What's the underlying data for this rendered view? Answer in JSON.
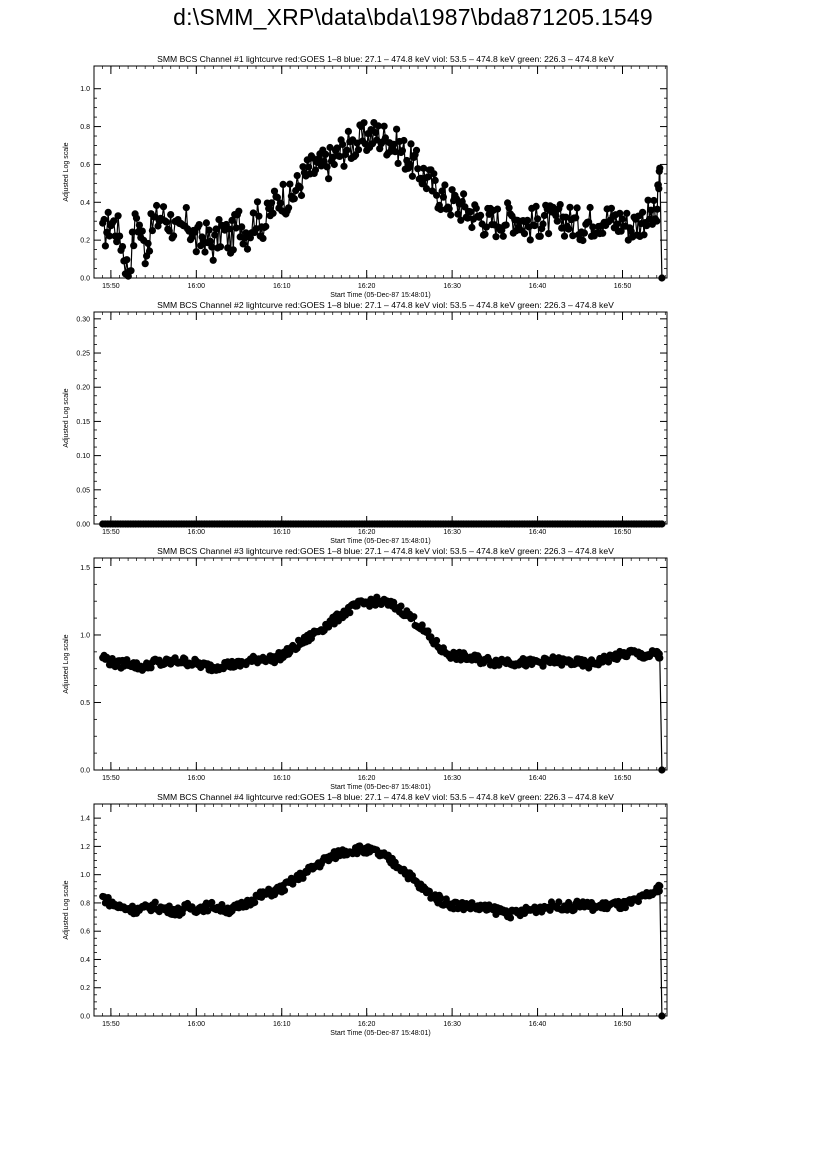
{
  "page": {
    "title": "d:\\SMM_XRP\\data\\bda\\1987\\bda871205.1549"
  },
  "chart_data": [
    {
      "type": "scatter",
      "title": "SMM BCS Channel #1 lightcurve  red:GOES 1–8  blue: 27.1 – 474.8 keV  viol: 53.5 – 474.8 keV  green: 226.3 – 474.8 keV",
      "xlabel": "Start Time (05-Dec-87 15:48:01)",
      "ylabel": "Adjusted Log scale",
      "xlim": [
        15.8,
        16.92
      ],
      "ylim": [
        0,
        1.12
      ],
      "xtick_values": [
        15.833,
        16.0,
        16.167,
        16.333,
        16.5,
        16.667,
        16.833
      ],
      "xtick_labels": [
        "15:50",
        "16:00",
        "16:10",
        "16:20",
        "16:30",
        "16:40",
        "16:50"
      ],
      "ytick_values": [
        0,
        0.2,
        0.4,
        0.6,
        0.8,
        1.0
      ],
      "ytick_labels": [
        "0.0",
        "0.2",
        "0.4",
        "0.6",
        "0.8",
        "1.0"
      ],
      "series": [
        {
          "x": [
            15.817,
            15.833,
            15.85,
            15.867,
            15.883,
            15.9,
            15.917,
            15.933,
            15.95,
            15.967,
            15.983,
            16.0,
            16.017,
            16.033,
            16.05,
            16.067,
            16.083,
            16.1,
            16.117,
            16.133,
            16.15,
            16.167,
            16.183,
            16.2,
            16.217,
            16.233,
            16.25,
            16.267,
            16.283,
            16.3,
            16.317,
            16.333,
            16.35,
            16.367,
            16.383,
            16.4,
            16.417,
            16.433,
            16.45,
            16.467,
            16.483,
            16.5,
            16.517,
            16.533,
            16.55,
            16.567,
            16.583,
            16.6,
            16.617,
            16.633,
            16.65,
            16.667,
            16.683,
            16.7,
            16.717,
            16.733,
            16.75,
            16.767,
            16.783,
            16.8,
            16.817,
            16.833,
            16.85,
            16.867,
            16.883,
            16.9,
            16.906,
            16.91
          ],
          "y": [
            0.22,
            0.3,
            0.24,
            0.02,
            0.33,
            0.15,
            0.3,
            0.33,
            0.3,
            0.22,
            0.3,
            0.19,
            0.22,
            0.17,
            0.25,
            0.2,
            0.3,
            0.24,
            0.33,
            0.28,
            0.38,
            0.44,
            0.41,
            0.49,
            0.56,
            0.58,
            0.6,
            0.62,
            0.67,
            0.7,
            0.72,
            0.74,
            0.76,
            0.74,
            0.72,
            0.68,
            0.63,
            0.58,
            0.53,
            0.47,
            0.42,
            0.4,
            0.38,
            0.35,
            0.33,
            0.3,
            0.3,
            0.31,
            0.33,
            0.31,
            0.28,
            0.3,
            0.31,
            0.29,
            0.31,
            0.3,
            0.28,
            0.3,
            0.31,
            0.32,
            0.3,
            0.3,
            0.27,
            0.3,
            0.33,
            0.32,
            0.58,
            0.0
          ]
        }
      ]
    },
    {
      "type": "scatter",
      "title": "SMM BCS Channel #2 lightcurve  red:GOES 1–8  blue: 27.1 – 474.8 keV  viol: 53.5 – 474.8 keV  green: 226.3 – 474.8 keV",
      "xlabel": "Start Time (05-Dec-87 15:48:01)",
      "ylabel": "Adjusted Log scale",
      "xlim": [
        15.8,
        16.92
      ],
      "ylim": [
        0,
        0.31
      ],
      "xtick_values": [
        15.833,
        16.0,
        16.167,
        16.333,
        16.5,
        16.667,
        16.833
      ],
      "xtick_labels": [
        "15:50",
        "16:00",
        "16:10",
        "16:20",
        "16:30",
        "16:40",
        "16:50"
      ],
      "ytick_values": [
        0,
        0.05,
        0.1,
        0.15,
        0.2,
        0.25,
        0.3
      ],
      "ytick_labels": [
        "0.00",
        "0.05",
        "0.10",
        "0.15",
        "0.20",
        "0.25",
        "0.30"
      ],
      "series": [
        {
          "x": [
            15.817,
            16.91
          ],
          "y": [
            0.0,
            0.0
          ]
        }
      ]
    },
    {
      "type": "scatter",
      "title": "SMM BCS Channel #3 lightcurve  red:GOES 1–8  blue: 27.1 – 474.8 keV  viol: 53.5 – 474.8 keV  green: 226.3 – 474.8 keV",
      "xlabel": "Start Time (05-Dec-87 15:48:01)",
      "ylabel": "Adjusted Log scale",
      "xlim": [
        15.8,
        16.92
      ],
      "ylim": [
        0,
        1.57
      ],
      "xtick_values": [
        15.833,
        16.0,
        16.167,
        16.333,
        16.5,
        16.667,
        16.833
      ],
      "xtick_labels": [
        "15:50",
        "16:00",
        "16:10",
        "16:20",
        "16:30",
        "16:40",
        "16:50"
      ],
      "ytick_values": [
        0,
        0.5,
        1.0,
        1.5
      ],
      "ytick_labels": [
        "0.0",
        "0.5",
        "1.0",
        "1.5"
      ],
      "series": [
        {
          "x": [
            15.817,
            15.833,
            15.85,
            15.867,
            15.883,
            15.9,
            15.917,
            15.933,
            15.95,
            15.967,
            15.983,
            16.0,
            16.017,
            16.033,
            16.05,
            16.067,
            16.083,
            16.1,
            16.117,
            16.133,
            16.15,
            16.167,
            16.183,
            16.2,
            16.217,
            16.233,
            16.25,
            16.267,
            16.283,
            16.3,
            16.317,
            16.333,
            16.35,
            16.367,
            16.383,
            16.4,
            16.417,
            16.433,
            16.45,
            16.467,
            16.483,
            16.5,
            16.517,
            16.533,
            16.55,
            16.567,
            16.583,
            16.6,
            16.617,
            16.633,
            16.65,
            16.667,
            16.683,
            16.7,
            16.717,
            16.733,
            16.75,
            16.767,
            16.783,
            16.8,
            16.817,
            16.833,
            16.85,
            16.867,
            16.883,
            16.9,
            16.906,
            16.91
          ],
          "y": [
            0.84,
            0.8,
            0.78,
            0.8,
            0.77,
            0.76,
            0.8,
            0.79,
            0.8,
            0.81,
            0.8,
            0.79,
            0.77,
            0.76,
            0.78,
            0.78,
            0.78,
            0.8,
            0.82,
            0.83,
            0.82,
            0.85,
            0.88,
            0.93,
            0.97,
            1.02,
            1.06,
            1.1,
            1.15,
            1.19,
            1.22,
            1.24,
            1.25,
            1.24,
            1.22,
            1.19,
            1.14,
            1.08,
            1.01,
            0.94,
            0.88,
            0.85,
            0.84,
            0.83,
            0.82,
            0.81,
            0.8,
            0.81,
            0.8,
            0.8,
            0.79,
            0.8,
            0.8,
            0.81,
            0.8,
            0.8,
            0.79,
            0.78,
            0.8,
            0.82,
            0.84,
            0.85,
            0.87,
            0.85,
            0.85,
            0.86,
            0.83,
            0.0
          ]
        }
      ]
    },
    {
      "type": "scatter",
      "title": "SMM BCS Channel #4 lightcurve  red:GOES 1–8  blue: 27.1 – 474.8 keV  viol: 53.5 – 474.8 keV  green: 226.3 – 474.8 keV",
      "xlabel": "Start Time (05-Dec-87 15:48:01)",
      "ylabel": "Adjusted Log scale",
      "xlim": [
        15.8,
        16.92
      ],
      "ylim": [
        0,
        1.5
      ],
      "xtick_values": [
        15.833,
        16.0,
        16.167,
        16.333,
        16.5,
        16.667,
        16.833
      ],
      "xtick_labels": [
        "15:50",
        "16:00",
        "16:10",
        "16:20",
        "16:30",
        "16:40",
        "16:50"
      ],
      "ytick_values": [
        0,
        0.2,
        0.4,
        0.6,
        0.8,
        1.0,
        1.2,
        1.4
      ],
      "ytick_labels": [
        "0.0",
        "0.2",
        "0.4",
        "0.6",
        "0.8",
        "1.0",
        "1.2",
        "1.4"
      ],
      "series": [
        {
          "x": [
            15.817,
            15.833,
            15.85,
            15.867,
            15.883,
            15.9,
            15.917,
            15.933,
            15.95,
            15.967,
            15.983,
            16.0,
            16.017,
            16.033,
            16.05,
            16.067,
            16.083,
            16.1,
            16.117,
            16.133,
            16.15,
            16.167,
            16.183,
            16.2,
            16.217,
            16.233,
            16.25,
            16.267,
            16.283,
            16.3,
            16.317,
            16.333,
            16.35,
            16.367,
            16.383,
            16.4,
            16.417,
            16.433,
            16.45,
            16.467,
            16.483,
            16.5,
            16.517,
            16.533,
            16.55,
            16.567,
            16.583,
            16.6,
            16.617,
            16.633,
            16.65,
            16.667,
            16.683,
            16.7,
            16.717,
            16.733,
            16.75,
            16.767,
            16.783,
            16.8,
            16.817,
            16.833,
            16.85,
            16.867,
            16.883,
            16.9,
            16.906,
            16.91
          ],
          "y": [
            0.84,
            0.8,
            0.77,
            0.76,
            0.75,
            0.76,
            0.78,
            0.76,
            0.75,
            0.74,
            0.77,
            0.76,
            0.77,
            0.78,
            0.76,
            0.75,
            0.77,
            0.8,
            0.84,
            0.86,
            0.88,
            0.9,
            0.94,
            0.98,
            1.02,
            1.06,
            1.1,
            1.13,
            1.16,
            1.17,
            1.18,
            1.17,
            1.16,
            1.13,
            1.09,
            1.05,
            0.99,
            0.93,
            0.88,
            0.84,
            0.81,
            0.79,
            0.78,
            0.78,
            0.77,
            0.76,
            0.75,
            0.74,
            0.72,
            0.73,
            0.75,
            0.76,
            0.77,
            0.78,
            0.78,
            0.77,
            0.79,
            0.78,
            0.77,
            0.78,
            0.79,
            0.78,
            0.8,
            0.82,
            0.86,
            0.88,
            0.92,
            0.0
          ]
        }
      ]
    }
  ]
}
